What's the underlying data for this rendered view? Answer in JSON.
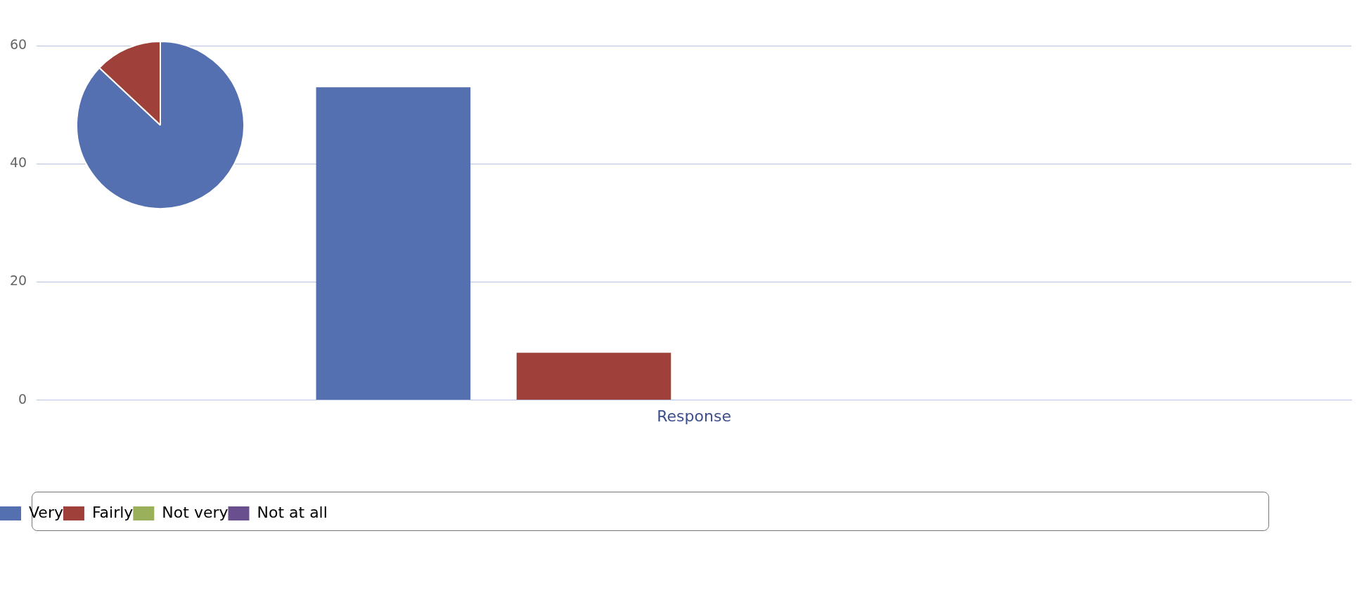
{
  "chart_data": [
    {
      "type": "bar",
      "categories": [
        "Response"
      ],
      "series": [
        {
          "name": "Very",
          "color": "#5470b0",
          "values": [
            53
          ]
        },
        {
          "name": "Fairly",
          "color": "#a0403a",
          "values": [
            8
          ]
        },
        {
          "name": "Not very",
          "color": "#9bb05a",
          "values": [
            0
          ]
        },
        {
          "name": "Not at all",
          "color": "#6a4f8f",
          "values": [
            0
          ]
        }
      ],
      "ylim": [
        0,
        60
      ],
      "yticks": [
        0,
        20,
        40,
        60
      ],
      "grid": "y",
      "legend": "bottom"
    },
    {
      "type": "pie",
      "categories": [
        null,
        null,
        null,
        null
      ],
      "values": [
        87,
        13,
        0,
        0
      ],
      "colors": [
        "#5470b0",
        "#a0403a",
        "#9bb05a",
        "#6a4f8f"
      ]
    }
  ]
}
